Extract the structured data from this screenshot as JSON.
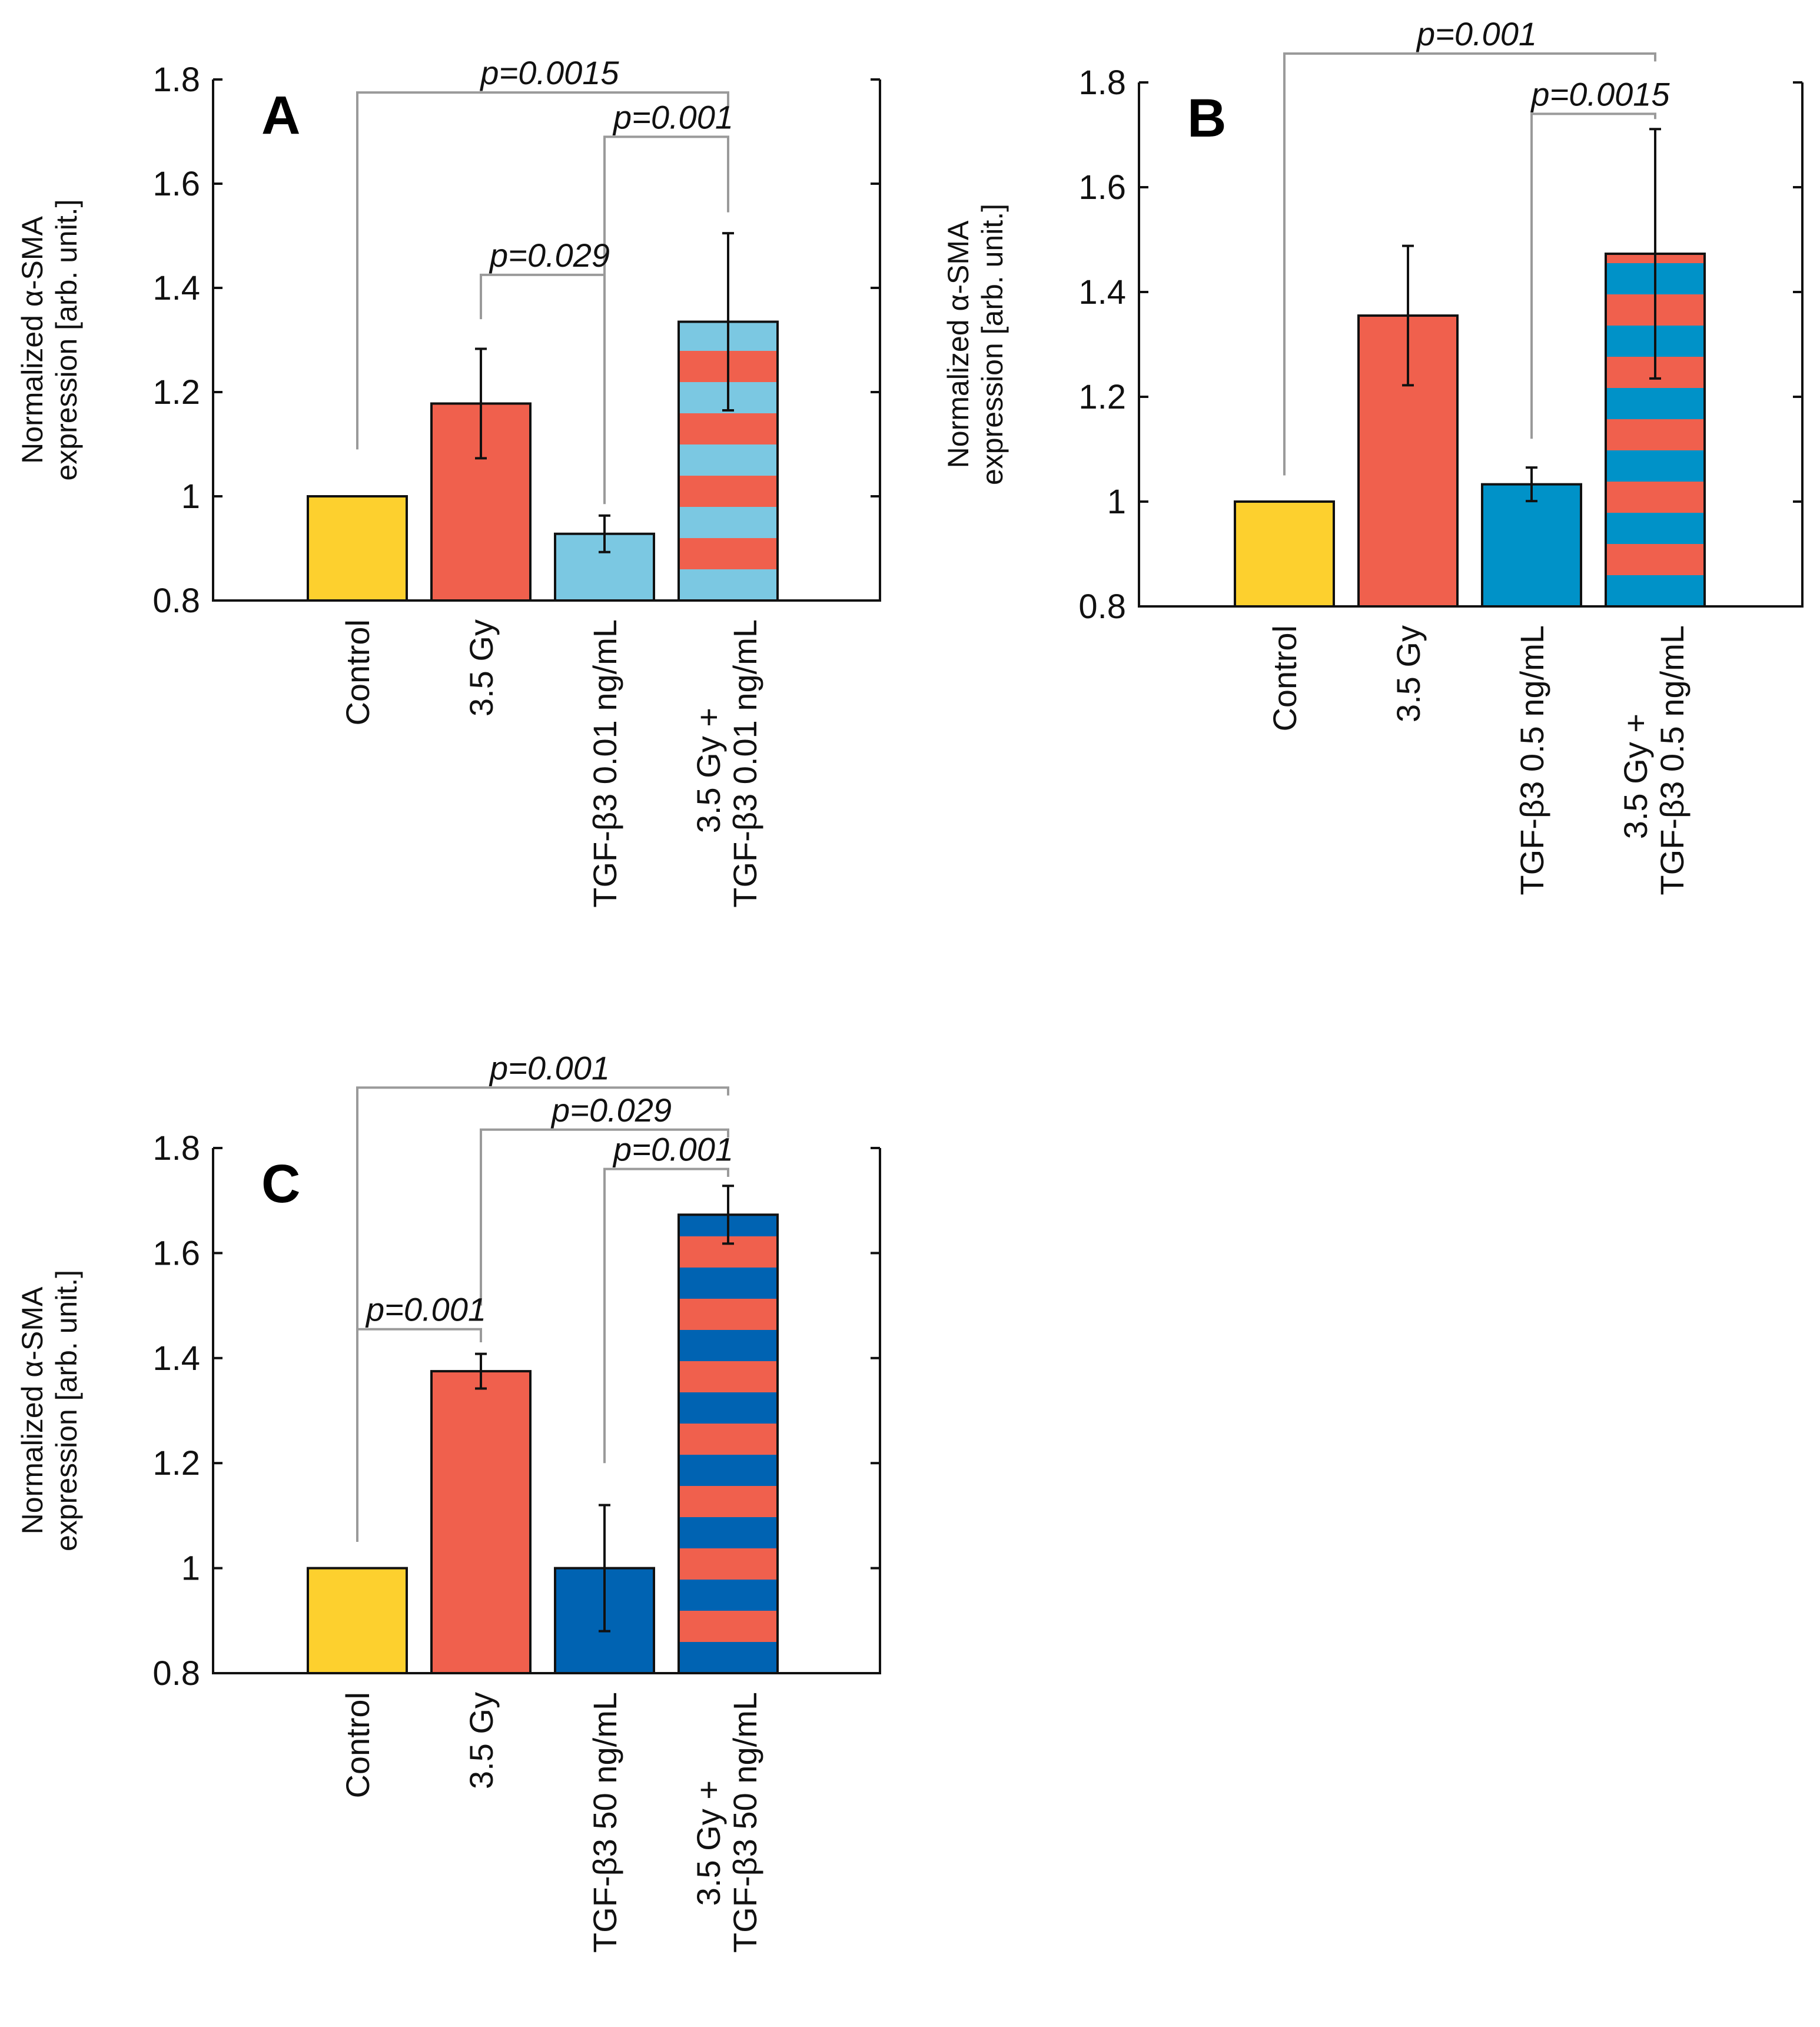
{
  "colors": {
    "control": "#FDD02E",
    "irradiated": "#F0604D",
    "tgf_A": "#7BC8E2",
    "tgf_B": "#0092C8",
    "tgf_C": "#0063B2"
  },
  "chart_data": [
    {
      "panel": "A",
      "type": "bar",
      "ylabel_lines": [
        "Normalized α-SMA",
        "expression [arb. unit.]"
      ],
      "ylim": [
        0.8,
        1.8
      ],
      "yticks": [
        0.8,
        1,
        1.2,
        1.4,
        1.6,
        1.8
      ],
      "ytick_labels": [
        "0.8",
        "1",
        "1.2",
        "1.4",
        "1.6",
        "1.8"
      ],
      "categories": [
        [
          "Control"
        ],
        [
          "3.5 Gy"
        ],
        [
          "TGF-β3 0.01 ng/mL"
        ],
        [
          "3.5 Gy +",
          "TGF-β3 0.01 ng/mL"
        ]
      ],
      "values": [
        1.0,
        1.178,
        0.928,
        1.335
      ],
      "errors": [
        0.0,
        0.105,
        0.035,
        0.17
      ],
      "fills": [
        "control",
        "irradiated",
        "tgf_A",
        "striped"
      ],
      "tgf_color": "tgf_A",
      "comparisons": [
        {
          "from": 0,
          "to": 3,
          "label": "p=0.0015",
          "y": 1.775,
          "from_end": 1.09,
          "to_end": 1.745
        },
        {
          "from": 2,
          "to": 3,
          "label": "p=0.001",
          "y": 1.69,
          "from_end": 0.985,
          "to_end": 1.545
        },
        {
          "from": 1,
          "to": 2,
          "label": "p=0.029",
          "y": 1.425,
          "from_end": 1.34,
          "to_end": 0.99
        }
      ]
    },
    {
      "panel": "B",
      "type": "bar",
      "ylabel_lines": [
        "Normalized α-SMA",
        "expression [arb. unit.]"
      ],
      "ylim": [
        0.8,
        1.8
      ],
      "yticks": [
        0.8,
        1,
        1.2,
        1.4,
        1.6,
        1.8
      ],
      "ytick_labels": [
        "0.8",
        "1",
        "1.2",
        "1.4",
        "1.6",
        "1.8"
      ],
      "categories": [
        [
          "Control"
        ],
        [
          "3.5 Gy"
        ],
        [
          "TGF-β3 0.5 ng/mL"
        ],
        [
          "3.5 Gy +",
          "TGF-β3 0.5 ng/mL"
        ]
      ],
      "values": [
        1.0,
        1.355,
        1.033,
        1.473
      ],
      "errors": [
        0.0,
        0.133,
        0.032,
        0.238
      ],
      "fills": [
        "control",
        "irradiated",
        "tgf_B",
        "striped"
      ],
      "tgf_color": "tgf_B",
      "comparisons": [
        {
          "from": 0,
          "to": 3,
          "label": "p=0.001",
          "y": 1.855,
          "from_end": 1.05,
          "to_end": 1.84
        },
        {
          "from": 2,
          "to": 3,
          "label": "p=0.0015",
          "y": 1.74,
          "from_end": 1.12,
          "to_end": 1.73
        }
      ]
    },
    {
      "panel": "C",
      "type": "bar",
      "ylabel_lines": [
        "Normalized α-SMA",
        "expression [arb. unit.]"
      ],
      "ylim": [
        0.8,
        1.8
      ],
      "yticks": [
        0.8,
        1,
        1.2,
        1.4,
        1.6,
        1.8
      ],
      "ytick_labels": [
        "0.8",
        "1",
        "1.2",
        "1.4",
        "1.6",
        "1.8"
      ],
      "categories": [
        [
          "Control"
        ],
        [
          "3.5 Gy"
        ],
        [
          "TGF-β3 50 ng/mL"
        ],
        [
          "3.5 Gy +",
          "TGF-β3 50 ng/mL"
        ]
      ],
      "values": [
        1.0,
        1.375,
        1.0,
        1.673
      ],
      "errors": [
        0.0,
        0.033,
        0.12,
        0.055
      ],
      "fills": [
        "control",
        "irradiated",
        "tgf_C",
        "striped"
      ],
      "tgf_color": "tgf_C",
      "comparisons": [
        {
          "from": 0,
          "to": 3,
          "label": "p=0.001",
          "y": 1.915,
          "from_end": 1.05,
          "to_end": 1.9
        },
        {
          "from": 1,
          "to": 3,
          "label": "p=0.029",
          "y": 1.835,
          "from_end": 1.5,
          "to_end": 1.82
        },
        {
          "from": 2,
          "to": 3,
          "label": "p=0.001",
          "y": 1.76,
          "from_end": 1.2,
          "to_end": 1.745
        },
        {
          "from": 0,
          "to": 1,
          "label": "p=0.001",
          "y": 1.455,
          "from_end": 1.05,
          "to_end": 1.43
        }
      ]
    }
  ]
}
